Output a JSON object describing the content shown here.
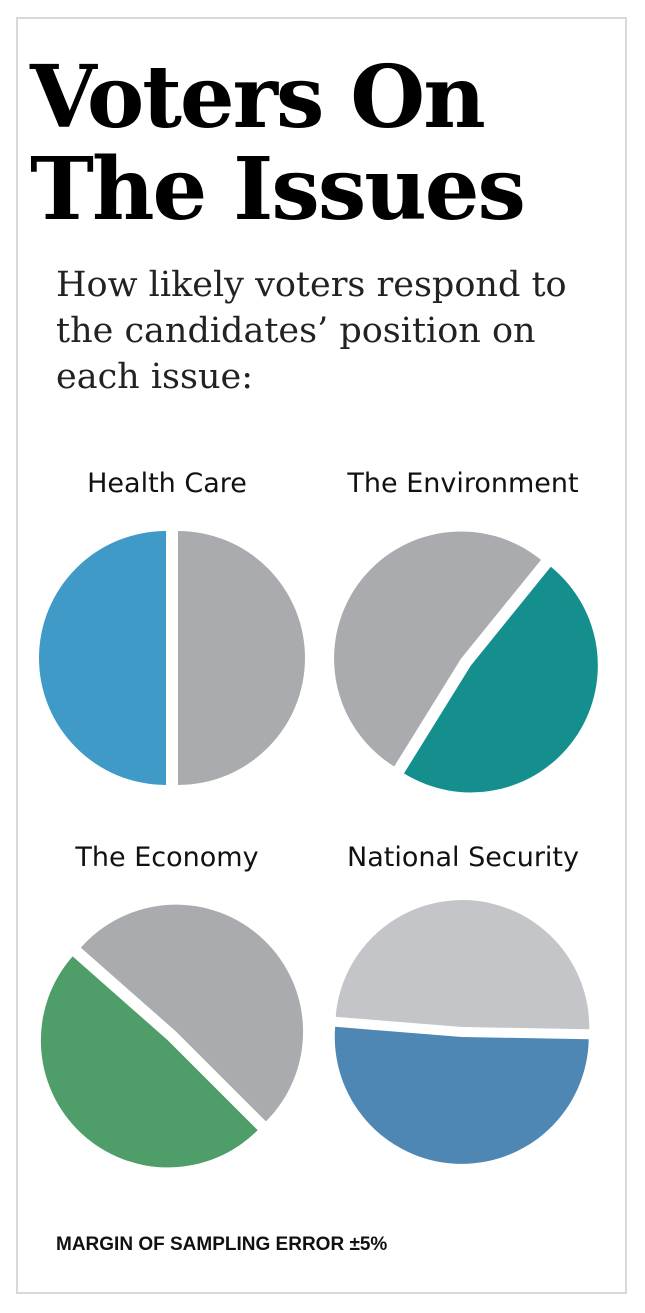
{
  "title": "Voters On The Issues",
  "subtitle": "How likely voters respond to the candidates’ position on each issue:",
  "footnote": "MARGIN OF SAMPLING ERROR ±5%",
  "chart_data": [
    {
      "type": "pie",
      "title": "Health Care",
      "values": [
        50,
        50
      ],
      "colors": [
        "#3f9ac8",
        "#a9abae"
      ]
    },
    {
      "type": "pie",
      "title": "The Environment",
      "values": [
        48,
        52
      ],
      "colors": [
        "#148f8e",
        "#a9abae"
      ]
    },
    {
      "type": "pie",
      "title": "The Economy",
      "values": [
        49,
        51
      ],
      "colors": [
        "#4f9e6a",
        "#a9abae"
      ]
    },
    {
      "type": "pie",
      "title": "National Security",
      "values": [
        51,
        49
      ],
      "colors": [
        "#4e86b4",
        "#c4c5c8"
      ]
    }
  ]
}
